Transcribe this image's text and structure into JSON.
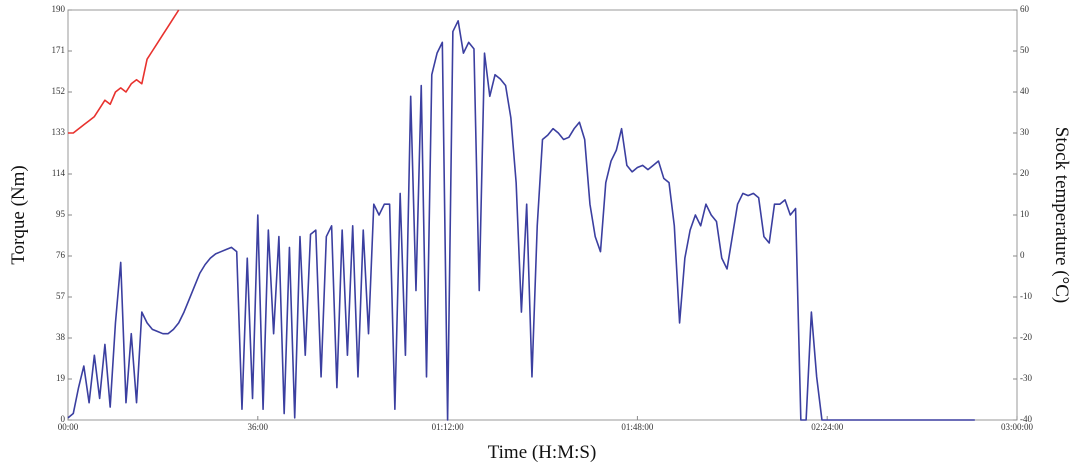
{
  "chart_data": {
    "type": "line",
    "xlabel": "Time (H:M:S)",
    "ylabel": "Torque (Nm)",
    "y2label": "Stock temperature (°C)",
    "xlim": [
      0,
      10800
    ],
    "xticks": [
      {
        "value": 0,
        "label": "00:00"
      },
      {
        "value": 2160,
        "label": "36:00"
      },
      {
        "value": 4320,
        "label": "01:12:00"
      },
      {
        "value": 6480,
        "label": "01:48:00"
      },
      {
        "value": 8640,
        "label": "02:24:00"
      },
      {
        "value": 10800,
        "label": "03:00:00"
      }
    ],
    "ylim": [
      0,
      190
    ],
    "yticks": [
      0,
      19,
      38,
      57,
      76,
      95,
      114,
      133,
      152,
      171,
      190
    ],
    "y2lim": [
      -40,
      60
    ],
    "y2ticks": [
      -40,
      -30,
      -20,
      -10,
      0,
      10,
      20,
      30,
      40,
      50,
      60
    ],
    "grid": false,
    "series": [
      {
        "color": "#3b3fa0",
        "x": [
          0,
          60,
          120,
          180,
          240,
          300,
          360,
          420,
          480,
          540,
          600,
          660,
          720,
          780,
          840,
          900,
          960,
          1020,
          1080,
          1140,
          1200,
          1260,
          1320,
          1380,
          1440,
          1500,
          1560,
          1620,
          1680,
          1740,
          1800,
          1860,
          1920,
          1980,
          2040,
          2100,
          2160,
          2220,
          2280,
          2340,
          2400,
          2460,
          2520,
          2580,
          2640,
          2700,
          2760,
          2820,
          2880,
          2940,
          3000,
          3060,
          3120,
          3180,
          3240,
          3300,
          3360,
          3420,
          3480,
          3540,
          3600,
          3660,
          3720,
          3780,
          3840,
          3900,
          3960,
          4020,
          4080,
          4140,
          4200,
          4260,
          4320,
          4380,
          4440,
          4500,
          4560,
          4620,
          4680,
          4740,
          4800,
          4860,
          4920,
          4980,
          5040,
          5100,
          5160,
          5220,
          5280,
          5340,
          5400,
          5460,
          5520,
          5580,
          5640,
          5700,
          5760,
          5820,
          5880,
          5940,
          6000,
          6060,
          6120,
          6180,
          6240,
          6300,
          6360,
          6420,
          6480,
          6540,
          6600,
          6660,
          6720,
          6780,
          6840,
          6900,
          6960,
          7020,
          7080,
          7140,
          7200,
          7260,
          7320,
          7380,
          7440,
          7500,
          7560,
          7620,
          7680,
          7740,
          7800,
          7860,
          7920,
          7980,
          8040,
          8100,
          8160,
          8220,
          8280,
          8340,
          8400,
          8460,
          8520,
          8580,
          8640,
          8700,
          8760,
          8820,
          8880,
          8940,
          9000,
          9060,
          9120,
          9180,
          9240,
          9300,
          9360,
          9420,
          9480,
          9540,
          9600,
          9660,
          9720,
          9780,
          9840,
          9900,
          9960,
          10020,
          10080,
          10140,
          10200,
          10260,
          10320
        ],
        "values": [
          1,
          3,
          15,
          25,
          8,
          30,
          10,
          35,
          6,
          45,
          73,
          8,
          40,
          8,
          50,
          45,
          42,
          41,
          40,
          40,
          42,
          45,
          50,
          56,
          62,
          68,
          72,
          75,
          77,
          78,
          79,
          80,
          78,
          5,
          75,
          10,
          95,
          5,
          88,
          40,
          85,
          3,
          80,
          1,
          85,
          30,
          86,
          88,
          20,
          85,
          90,
          15,
          88,
          30,
          90,
          20,
          88,
          40,
          100,
          95,
          100,
          100,
          5,
          105,
          30,
          150,
          60,
          155,
          20,
          160,
          170,
          175,
          0,
          180,
          185,
          170,
          175,
          172,
          60,
          170,
          150,
          160,
          158,
          155,
          140,
          110,
          50,
          100,
          20,
          90,
          130,
          132,
          135,
          133,
          130,
          131,
          135,
          138,
          130,
          100,
          85,
          78,
          110,
          120,
          125,
          135,
          118,
          115,
          117,
          118,
          116,
          118,
          120,
          112,
          110,
          90,
          45,
          75,
          88,
          95,
          90,
          100,
          95,
          92,
          75,
          70,
          85,
          100,
          105,
          104,
          105,
          103,
          85,
          82,
          100,
          100,
          102,
          95,
          98,
          0,
          0,
          50,
          20,
          0,
          0,
          0,
          0,
          0,
          0,
          0,
          0,
          0,
          0,
          0,
          0,
          0,
          0,
          0,
          0,
          0,
          0,
          0,
          0,
          0,
          0,
          0,
          0,
          0,
          0,
          0,
          0,
          0,
          0
        ]
      },
      {
        "color": "#e8322e",
        "axis": "y2",
        "x": [
          0,
          60,
          120,
          180,
          240,
          300,
          360,
          420,
          480,
          540,
          600,
          660,
          720,
          780,
          840,
          900,
          960,
          1020,
          1080,
          1140,
          1200,
          1260
        ],
        "values": [
          30,
          30,
          31,
          32,
          33,
          34,
          36,
          38,
          37,
          40,
          41,
          40,
          42,
          43,
          42,
          48,
          50,
          52,
          54,
          56,
          58,
          60
        ]
      }
    ]
  }
}
